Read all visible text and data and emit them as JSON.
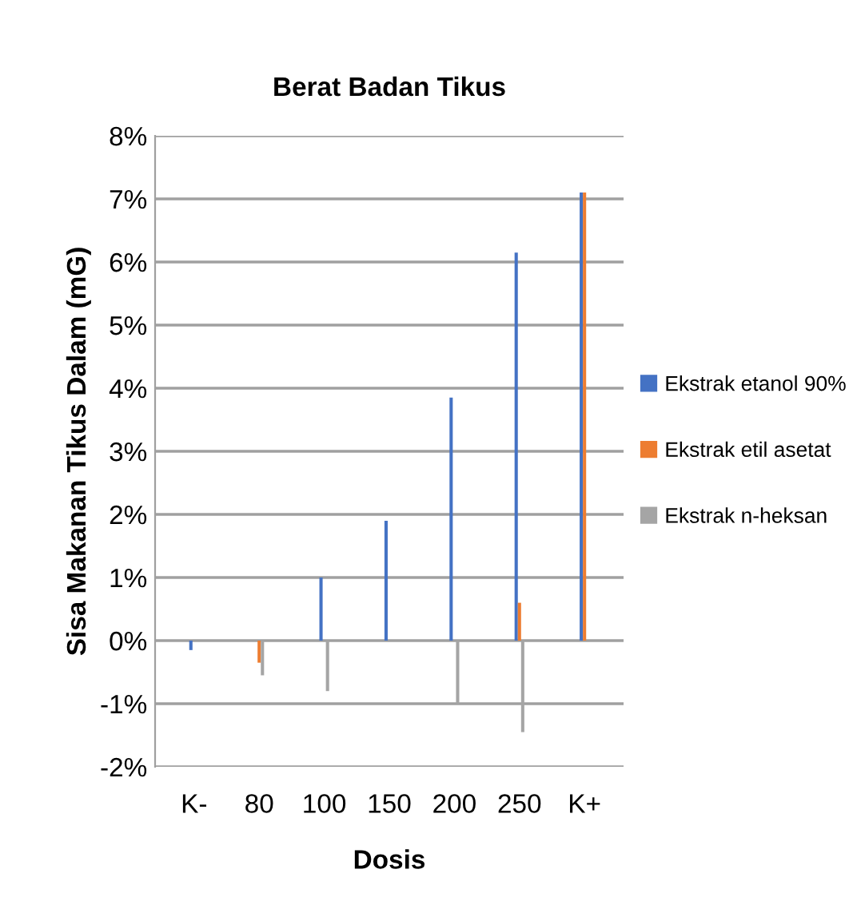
{
  "chart_data": {
    "type": "bar",
    "title": "Berat Badan Tikus",
    "xlabel": "Dosis",
    "ylabel": "Sisa Makanan Tikus Dalam (mG)",
    "categories": [
      "K-",
      "80",
      "100",
      "150",
      "200",
      "250",
      "K+"
    ],
    "series": [
      {
        "name": "Ekstrak etanol 90%",
        "color": "#4472c4",
        "values": [
          -0.15,
          0,
          1.0,
          1.9,
          3.85,
          6.15,
          7.1
        ]
      },
      {
        "name": "Ekstrak etil asetat",
        "color": "#ed7d31",
        "values": [
          0,
          -0.35,
          0,
          0,
          0,
          0.6,
          7.1
        ]
      },
      {
        "name": "Ekstrak n-heksan",
        "color": "#a5a5a5",
        "values": [
          0,
          -0.55,
          -0.8,
          0,
          -1.0,
          -1.45,
          0
        ]
      }
    ],
    "ylim": [
      -2,
      8
    ],
    "yticks": [
      {
        "value": -2,
        "label": "-2%"
      },
      {
        "value": -1,
        "label": "-1%"
      },
      {
        "value": 0,
        "label": "0%"
      },
      {
        "value": 1,
        "label": "1%"
      },
      {
        "value": 2,
        "label": "2%"
      },
      {
        "value": 3,
        "label": "3%"
      },
      {
        "value": 4,
        "label": "4%"
      },
      {
        "value": 5,
        "label": "5%"
      },
      {
        "value": 6,
        "label": "6%"
      },
      {
        "value": 7,
        "label": "7%"
      },
      {
        "value": 8,
        "label": "8%"
      }
    ],
    "grid": "y",
    "legend": "right"
  }
}
